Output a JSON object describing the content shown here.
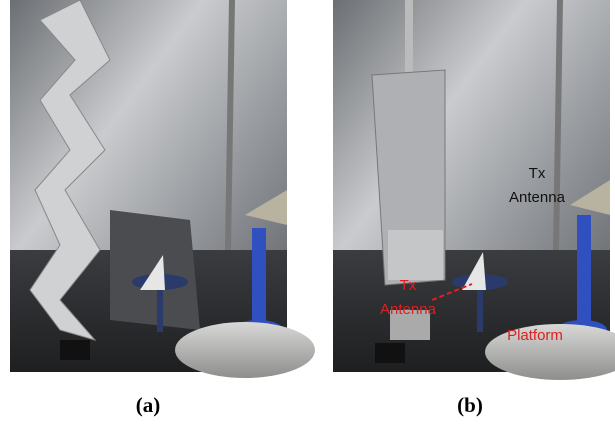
{
  "panels": [
    {
      "caption": "(a)"
    },
    {
      "caption": "(b)",
      "annotations": [
        {
          "lines": [
            "Tx",
            "Antenna"
          ],
          "color": "#111111"
        },
        {
          "lines": [
            "Tx",
            "Antenna"
          ],
          "color": "#e02020"
        },
        {
          "lines": [
            "Platform"
          ],
          "color": "#e02020"
        }
      ]
    }
  ]
}
